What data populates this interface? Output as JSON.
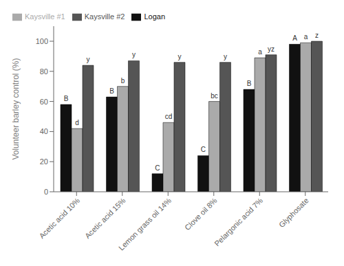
{
  "chart_data": {
    "type": "bar",
    "categories": [
      "Acetic acid 10%",
      "Acetic acid 15%",
      "Lemon grass oil 14%",
      "Clove oil 8%",
      "Pelargonic acid 7%",
      "Glyphosate"
    ],
    "series": [
      {
        "name": "Logan",
        "color": "#111111",
        "values": [
          58,
          63,
          12,
          24,
          68,
          98
        ]
      },
      {
        "name": "Kaysville #1",
        "color": "#aaaaaa",
        "values": [
          42,
          70,
          46,
          60,
          89,
          99
        ]
      },
      {
        "name": "Kaysville #2",
        "color": "#555555",
        "values": [
          84,
          87,
          86,
          86,
          91,
          100
        ]
      }
    ],
    "y_label": "Volunteer barley control (%)",
    "ylim": [
      0,
      110
    ],
    "yticks": [
      0,
      20,
      40,
      60,
      80,
      100
    ],
    "annotations": [
      {
        "category": "Acetic acid 10%",
        "series": "Logan",
        "text": "B"
      },
      {
        "category": "Acetic acid 10%",
        "series": "Kaysville #1",
        "text": "d"
      },
      {
        "category": "Acetic acid 10%",
        "series": "Kaysville #2",
        "text": "y"
      },
      {
        "category": "Acetic acid 15%",
        "series": "Logan",
        "text": "B"
      },
      {
        "category": "Acetic acid 15%",
        "series": "Kaysville #1",
        "text": "b"
      },
      {
        "category": "Acetic acid 15%",
        "series": "Kaysville #2",
        "text": "y"
      },
      {
        "category": "Lemon grass oil 14%",
        "series": "Logan",
        "text": "C"
      },
      {
        "category": "Lemon grass oil 14%",
        "series": "Kaysville #1",
        "text": "cd"
      },
      {
        "category": "Lemon grass oil 14%",
        "series": "Kaysville #2",
        "text": "y"
      },
      {
        "category": "Clove oil 8%",
        "series": "Logan",
        "text": "C"
      },
      {
        "category": "Clove oil 8%",
        "series": "Kaysville #1",
        "text": "bc"
      },
      {
        "category": "Clove oil 8%",
        "series": "Kaysville #2",
        "text": "y"
      },
      {
        "category": "Pelargonic acid 7%",
        "series": "Logan",
        "text": "B"
      },
      {
        "category": "Pelargonic acid 7%",
        "series": "Kaysville #1",
        "text": "a"
      },
      {
        "category": "Pelargonic acid 7%",
        "series": "Kaysville #2",
        "text": "yz"
      },
      {
        "category": "Glyphosate",
        "series": "Logan",
        "text": "A"
      },
      {
        "category": "Glyphosate",
        "series": "Kaysville #1",
        "text": "a"
      },
      {
        "category": "Glyphosate",
        "series": "Kaysville #2",
        "text": "z"
      }
    ],
    "grid": false,
    "legend": "upper left"
  }
}
